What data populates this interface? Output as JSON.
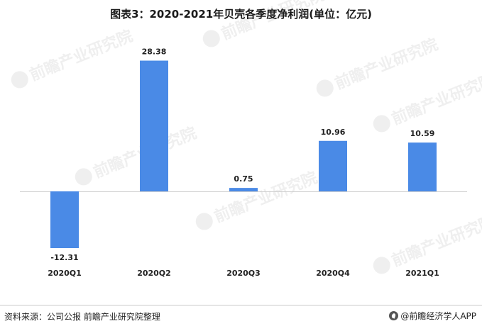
{
  "title": "图表3：2020-2021年贝壳各季度净利润(单位：亿元)",
  "source": "资料来源：公司公报 前瞻产业研究院整理",
  "brand": "@前瞻经济学人APP",
  "watermark_text": "前瞻产业研究院",
  "colors": {
    "bar": "#4a8ae6",
    "axis": "#d0d0d0",
    "label": "#222222"
  },
  "chart_data": {
    "type": "bar",
    "title": "图表3：2020-2021年贝壳各季度净利润(单位：亿元)",
    "categories": [
      "2020Q1",
      "2020Q2",
      "2020Q3",
      "2020Q4",
      "2021Q1"
    ],
    "values": [
      -12.31,
      28.38,
      0.75,
      10.96,
      10.59
    ],
    "value_labels": [
      "-12.31",
      "28.38",
      "0.75",
      "10.96",
      "10.59"
    ],
    "xlabel": "",
    "ylabel": "",
    "grid": false,
    "legend": "none"
  }
}
